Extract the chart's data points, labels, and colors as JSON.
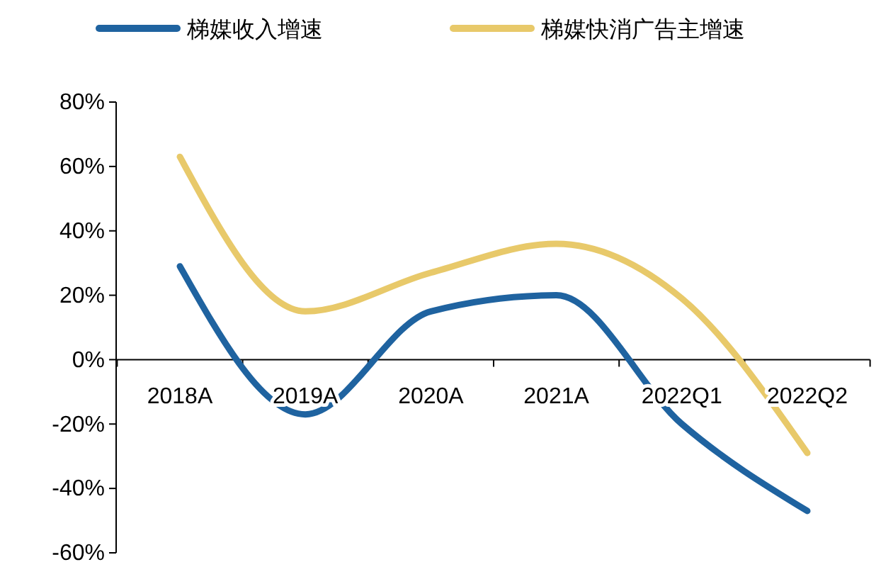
{
  "chart_data": {
    "type": "line",
    "categories": [
      "2018A",
      "2019A",
      "2020A",
      "2021A",
      "2022Q1",
      "2022Q2"
    ],
    "series": [
      {
        "name": "梯媒收入增速",
        "color": "#1f63a0",
        "values": [
          29,
          -17,
          15,
          20,
          -20,
          -47
        ]
      },
      {
        "name": "梯媒快消广告主增速",
        "color": "#e8c96a",
        "values": [
          63,
          15,
          27,
          36,
          19,
          -29
        ]
      }
    ],
    "ylim": [
      -60,
      80
    ],
    "yticks": [
      {
        "value": -60,
        "label": "-60%"
      },
      {
        "value": -40,
        "label": "-40%"
      },
      {
        "value": -20,
        "label": "-20%"
      },
      {
        "value": 0,
        "label": "0%"
      },
      {
        "value": 20,
        "label": "20%"
      },
      {
        "value": 40,
        "label": "40%"
      },
      {
        "value": 60,
        "label": "60%"
      },
      {
        "value": 80,
        "label": "80%"
      }
    ],
    "grid": false,
    "legend": "top",
    "marker": "none",
    "line_style": "solid"
  }
}
